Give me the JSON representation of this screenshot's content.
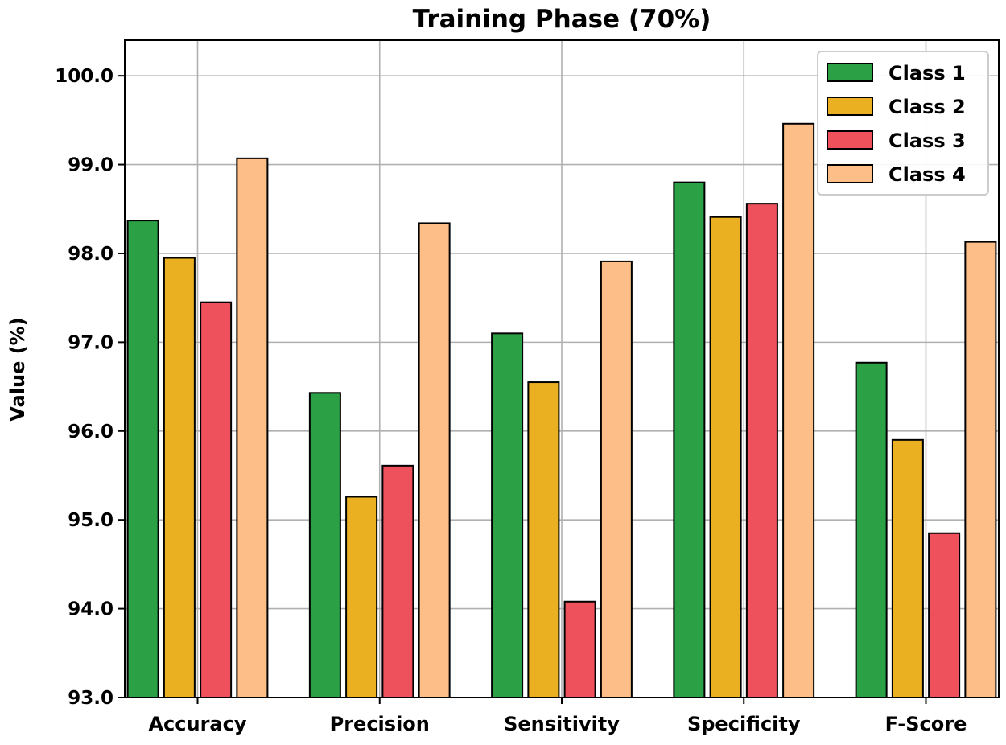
{
  "chart_data": {
    "type": "bar",
    "title": "Training Phase (70%)",
    "xlabel": "",
    "ylabel": "Value (%)",
    "categories": [
      "Accuracy",
      "Precision",
      "Sensitivity",
      "Specificity",
      "F-Score"
    ],
    "series": [
      {
        "name": "Class 1",
        "color": "#2ca045",
        "values": [
          98.37,
          96.43,
          97.1,
          98.8,
          96.77
        ]
      },
      {
        "name": "Class 2",
        "color": "#ebb022",
        "values": [
          97.95,
          95.26,
          96.55,
          98.41,
          95.9
        ]
      },
      {
        "name": "Class 3",
        "color": "#ee515c",
        "values": [
          97.45,
          95.61,
          94.08,
          98.56,
          94.85
        ]
      },
      {
        "name": "Class 4",
        "color": "#fdbf87",
        "values": [
          99.07,
          98.34,
          97.91,
          99.46,
          98.13
        ]
      }
    ],
    "ylim": [
      93.0,
      100.4
    ],
    "yticks": [
      93.0,
      94.0,
      95.0,
      96.0,
      97.0,
      98.0,
      99.0,
      100.0
    ],
    "ytick_labels": [
      "93.0",
      "94.0",
      "95.0",
      "96.0",
      "97.0",
      "98.0",
      "99.0",
      "100.0"
    ],
    "grid": true,
    "legend_position": "top-right"
  }
}
